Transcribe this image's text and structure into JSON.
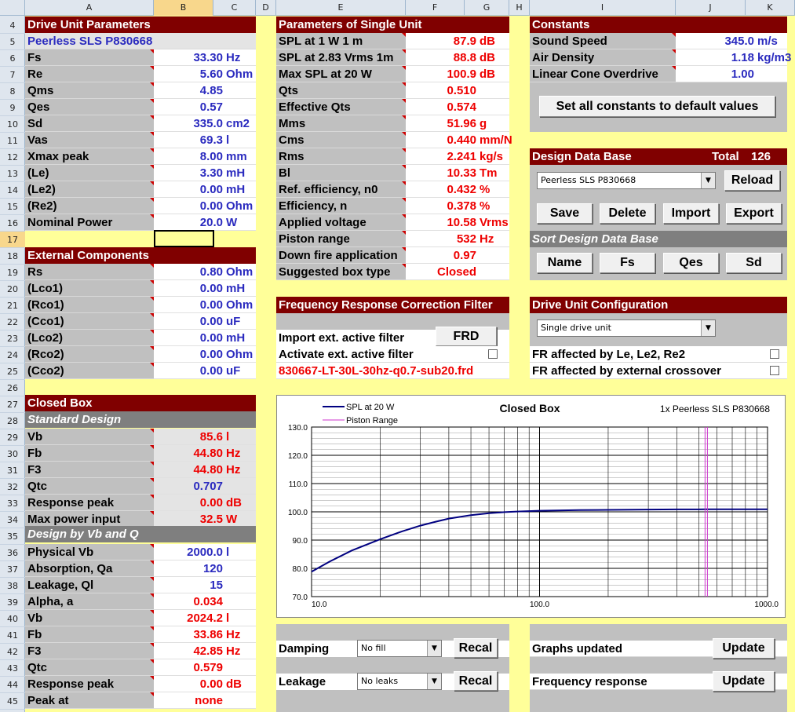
{
  "columns": [
    "A",
    "B",
    "C",
    "D",
    "E",
    "F",
    "G",
    "H",
    "I",
    "J",
    "K"
  ],
  "rows": [
    "4",
    "5",
    "6",
    "7",
    "8",
    "9",
    "10",
    "11",
    "12",
    "13",
    "14",
    "15",
    "16",
    "17",
    "18",
    "19",
    "20",
    "21",
    "22",
    "23",
    "24",
    "25",
    "26",
    "27",
    "28",
    "29",
    "30",
    "31",
    "32",
    "33",
    "34",
    "35",
    "36",
    "37",
    "38",
    "39",
    "40",
    "41",
    "42",
    "43",
    "44",
    "45"
  ],
  "drive_unit": {
    "title": "Drive Unit Parameters",
    "model": "Peerless SLS P830668",
    "rows": [
      {
        "label": "Fs",
        "value": "33.30",
        "unit": "Hz"
      },
      {
        "label": "Re",
        "value": "5.60",
        "unit": "Ohm"
      },
      {
        "label": "Qms",
        "value": "4.85",
        "unit": ""
      },
      {
        "label": "Qes",
        "value": "0.57",
        "unit": ""
      },
      {
        "label": "Sd",
        "value": "335.0",
        "unit": "cm2"
      },
      {
        "label": "Vas",
        "value": "69.3",
        "unit": "l"
      },
      {
        "label": "Xmax peak",
        "value": "8.00",
        "unit": "mm"
      },
      {
        "label": "(Le)",
        "value": "3.30",
        "unit": "mH"
      },
      {
        "label": "(Le2)",
        "value": "0.00",
        "unit": "mH"
      },
      {
        "label": "(Re2)",
        "value": "0.00",
        "unit": "Ohm"
      },
      {
        "label": "Nominal Power",
        "value": "20.0",
        "unit": "W"
      }
    ]
  },
  "external": {
    "title": "External Components",
    "rows": [
      {
        "label": "Rs",
        "value": "0.80",
        "unit": "Ohm"
      },
      {
        "label": "(Lco1)",
        "value": "0.00",
        "unit": "mH"
      },
      {
        "label": "(Rco1)",
        "value": "0.00",
        "unit": "Ohm"
      },
      {
        "label": "(Cco1)",
        "value": "0.00",
        "unit": "uF"
      },
      {
        "label": "(Lco2)",
        "value": "0.00",
        "unit": "mH"
      },
      {
        "label": "(Rco2)",
        "value": "0.00",
        "unit": "Ohm"
      },
      {
        "label": "(Cco2)",
        "value": "0.00",
        "unit": "uF"
      }
    ]
  },
  "closed_box": {
    "title": "Closed Box",
    "standard_title": "Standard Design",
    "standard": [
      {
        "label": "Vb",
        "value": "85.6",
        "unit": "l",
        "color": "red"
      },
      {
        "label": "Fb",
        "value": "44.80",
        "unit": "Hz",
        "color": "red"
      },
      {
        "label": "F3",
        "value": "44.80",
        "unit": "Hz",
        "color": "red"
      },
      {
        "label": "Qtc",
        "value": "0.707",
        "unit": "",
        "color": "blue"
      },
      {
        "label": "Response peak",
        "value": "0.00",
        "unit": "dB",
        "color": "red"
      },
      {
        "label": "Max power input",
        "value": "32.5",
        "unit": "W",
        "color": "red"
      }
    ],
    "vbq_title": "Design by Vb and Q",
    "vbq": [
      {
        "label": "Physical Vb",
        "value": "2000.0",
        "unit": "l",
        "color": "blue"
      },
      {
        "label": "Absorption, Qa",
        "value": "120",
        "unit": "",
        "color": "blue"
      },
      {
        "label": "Leakage, Ql",
        "value": "15",
        "unit": "",
        "color": "blue"
      },
      {
        "label": "Alpha, a",
        "value": "0.034",
        "unit": "",
        "color": "red"
      },
      {
        "label": "Vb",
        "value": "2024.2",
        "unit": "l",
        "color": "red"
      },
      {
        "label": "Fb",
        "value": "33.86",
        "unit": "Hz",
        "color": "red"
      },
      {
        "label": "F3",
        "value": "42.85",
        "unit": "Hz",
        "color": "red"
      },
      {
        "label": "Qtc",
        "value": "0.579",
        "unit": "",
        "color": "red"
      },
      {
        "label": "Response peak",
        "value": "0.00",
        "unit": "dB",
        "color": "red"
      },
      {
        "label": "Peak at",
        "value": "none",
        "unit": "",
        "color": "red"
      }
    ]
  },
  "single_unit": {
    "title": "Parameters of Single Unit",
    "rows": [
      {
        "label": "SPL at 1 W 1 m",
        "value": "87.9",
        "unit": "dB"
      },
      {
        "label": "SPL at 2.83 Vrms 1m",
        "value": "88.8",
        "unit": "dB"
      },
      {
        "label": "Max SPL at 20 W",
        "value": "100.9",
        "unit": "dB"
      },
      {
        "label": "Qts",
        "value": "0.510",
        "unit": ""
      },
      {
        "label": "Effective Qts",
        "value": "0.574",
        "unit": ""
      },
      {
        "label": "Mms",
        "value": "51.96",
        "unit": "g"
      },
      {
        "label": "Cms",
        "value": "0.440",
        "unit": "mm/N"
      },
      {
        "label": "Rms",
        "value": "2.241",
        "unit": "kg/s"
      },
      {
        "label": "Bl",
        "value": "10.33",
        "unit": "Tm"
      },
      {
        "label": "Ref. efficiency, n0",
        "value": "0.432",
        "unit": "%"
      },
      {
        "label": "Efficiency, n",
        "value": "0.378",
        "unit": "%"
      },
      {
        "label": "Applied voltage",
        "value": "10.58",
        "unit": "Vrms"
      },
      {
        "label": "Piston range",
        "value": "532",
        "unit": "Hz"
      },
      {
        "label": "Down fire application",
        "value": "0.97",
        "unit": ""
      },
      {
        "label": "Suggested box type",
        "value": "Closed",
        "unit": ""
      }
    ]
  },
  "frcf": {
    "title": "Frequency Response Correction Filter",
    "import_label": "Import ext. active filter",
    "frd_button": "FRD",
    "activate_label": "Activate ext. active filter",
    "filename": "830667-LT-30L-30hz-q0.7-sub20.frd"
  },
  "constants": {
    "title": "Constants",
    "rows": [
      {
        "label": "Sound Speed",
        "value": "345.0",
        "unit": "m/s"
      },
      {
        "label": "Air Density",
        "value": "1.18",
        "unit": "kg/m3"
      },
      {
        "label": "Linear Cone Overdrive",
        "value": "1.00",
        "unit": ""
      }
    ],
    "default_button": "Set all constants to default values"
  },
  "database": {
    "title": "Design Data Base",
    "total_label": "Total",
    "total": "126",
    "selected": "Peerless SLS P830668",
    "reload": "Reload",
    "save": "Save",
    "delete": "Delete",
    "import": "Import",
    "export": "Export",
    "sort_title": "Sort Design Data Base",
    "sort_name": "Name",
    "sort_fs": "Fs",
    "sort_qes": "Qes",
    "sort_sd": "Sd"
  },
  "config": {
    "title": "Drive Unit Configuration",
    "selected": "Single drive unit",
    "le_label": "FR affected by Le, Le2, Re2",
    "xo_label": "FR affected by external crossover"
  },
  "damping": {
    "label": "Damping",
    "selected": "No fill",
    "recal": "Recal"
  },
  "leakage": {
    "label": "Leakage",
    "selected": "No leaks",
    "recal": "Recal"
  },
  "graphs": {
    "label": "Graphs updated",
    "update": "Update"
  },
  "freqresp": {
    "label": "Frequency response",
    "update": "Update"
  },
  "chart_data": {
    "type": "line",
    "title": "Closed Box",
    "subtitle": "1x Peerless SLS P830668",
    "xscale": "log",
    "xlim": [
      10,
      1000
    ],
    "ylim": [
      70,
      130
    ],
    "xticks": [
      "10.0",
      "100.0",
      "1000.0"
    ],
    "yticks": [
      "130.0",
      "120.0",
      "110.0",
      "100.0",
      "90.0",
      "80.0",
      "70.0"
    ],
    "legend": "top-left",
    "grid": true,
    "series": [
      {
        "name": "SPL at 20 W",
        "color": "#000080",
        "x": [
          10,
          12,
          15,
          20,
          25,
          30,
          35,
          40,
          50,
          60,
          70,
          80,
          100,
          150,
          200,
          300,
          400,
          532,
          700,
          1000
        ],
        "y": [
          78.8,
          82.4,
          86.3,
          90.3,
          93.1,
          95.1,
          96.5,
          97.6,
          98.8,
          99.5,
          99.9,
          100.1,
          100.4,
          100.6,
          100.7,
          100.8,
          100.85,
          100.9,
          100.9,
          100.9
        ]
      },
      {
        "name": "Piston Range",
        "color": "#cc33cc",
        "x": [
          532,
          532
        ],
        "y": [
          70,
          130
        ]
      }
    ]
  }
}
